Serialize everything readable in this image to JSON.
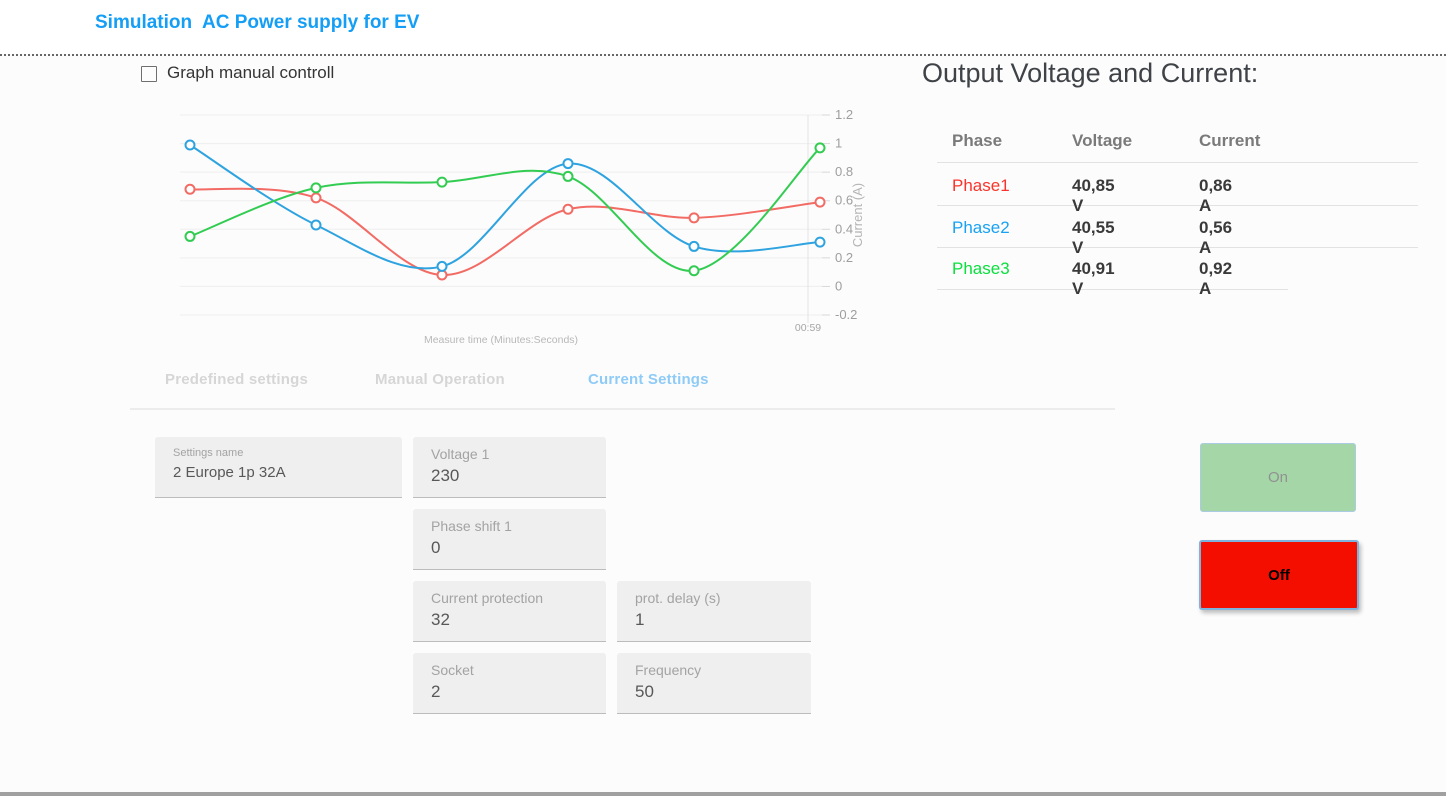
{
  "header": {
    "title": "Simulation  AC Power supply for EV"
  },
  "controls": {
    "graph_manual_label": "Graph manual controll",
    "graph_manual_checked": false
  },
  "chart_data": {
    "type": "line",
    "title": "",
    "xlabel": "Measure time (Minutes:Seconds)",
    "ylabel": "Current (A)",
    "x_tick_label": "00:59",
    "ylim": [
      -0.2,
      1.2
    ],
    "yticks": [
      1.2,
      1,
      0.8,
      0.6,
      0.4,
      0.2,
      0,
      -0.2
    ],
    "grid": true,
    "legend": "none",
    "marker": "open-circle",
    "x": [
      1,
      2,
      3,
      4,
      5,
      6
    ],
    "series": [
      {
        "name": "Phase1",
        "color": "#f26b64",
        "values": [
          0.68,
          0.62,
          0.08,
          0.54,
          0.48,
          0.59
        ]
      },
      {
        "name": "Phase2",
        "color": "#2ea3e0",
        "values": [
          0.99,
          0.43,
          0.14,
          0.86,
          0.28,
          0.31
        ]
      },
      {
        "name": "Phase3",
        "color": "#33cc52",
        "values": [
          0.35,
          0.69,
          0.73,
          0.77,
          0.11,
          0.97
        ]
      }
    ]
  },
  "output": {
    "title": "Output Voltage and Current:",
    "headers": {
      "phase": "Phase",
      "voltage": "Voltage",
      "current": "Current"
    },
    "rows": [
      {
        "phase": "Phase1",
        "color": "#fb342b",
        "voltage": "40,85 V",
        "current": "0,86 A"
      },
      {
        "phase": "Phase2",
        "color": "#18a2f3",
        "voltage": "40,55 V",
        "current": "0,56 A"
      },
      {
        "phase": "Phase3",
        "color": "#0adf3e",
        "voltage": "40,91 V",
        "current": "0,92 A"
      }
    ]
  },
  "tabs": [
    {
      "label": "Predefined settings",
      "active": false
    },
    {
      "label": "Manual Operation",
      "active": false
    },
    {
      "label": "Current Settings",
      "active": true
    }
  ],
  "form": {
    "settings_name": {
      "label": "Settings name",
      "value": "2 Europe 1p 32A"
    },
    "voltage1": {
      "label": "Voltage 1",
      "value": "230"
    },
    "phase_shift1": {
      "label": "Phase shift 1",
      "value": "0"
    },
    "current_protection": {
      "label": "Current protection",
      "value": "32"
    },
    "prot_delay": {
      "label": "prot. delay (s)",
      "value": "1"
    },
    "socket": {
      "label": "Socket",
      "value": "2"
    },
    "frequency": {
      "label": "Frequency",
      "value": "50"
    }
  },
  "buttons": {
    "on": "On",
    "off": "Off"
  }
}
